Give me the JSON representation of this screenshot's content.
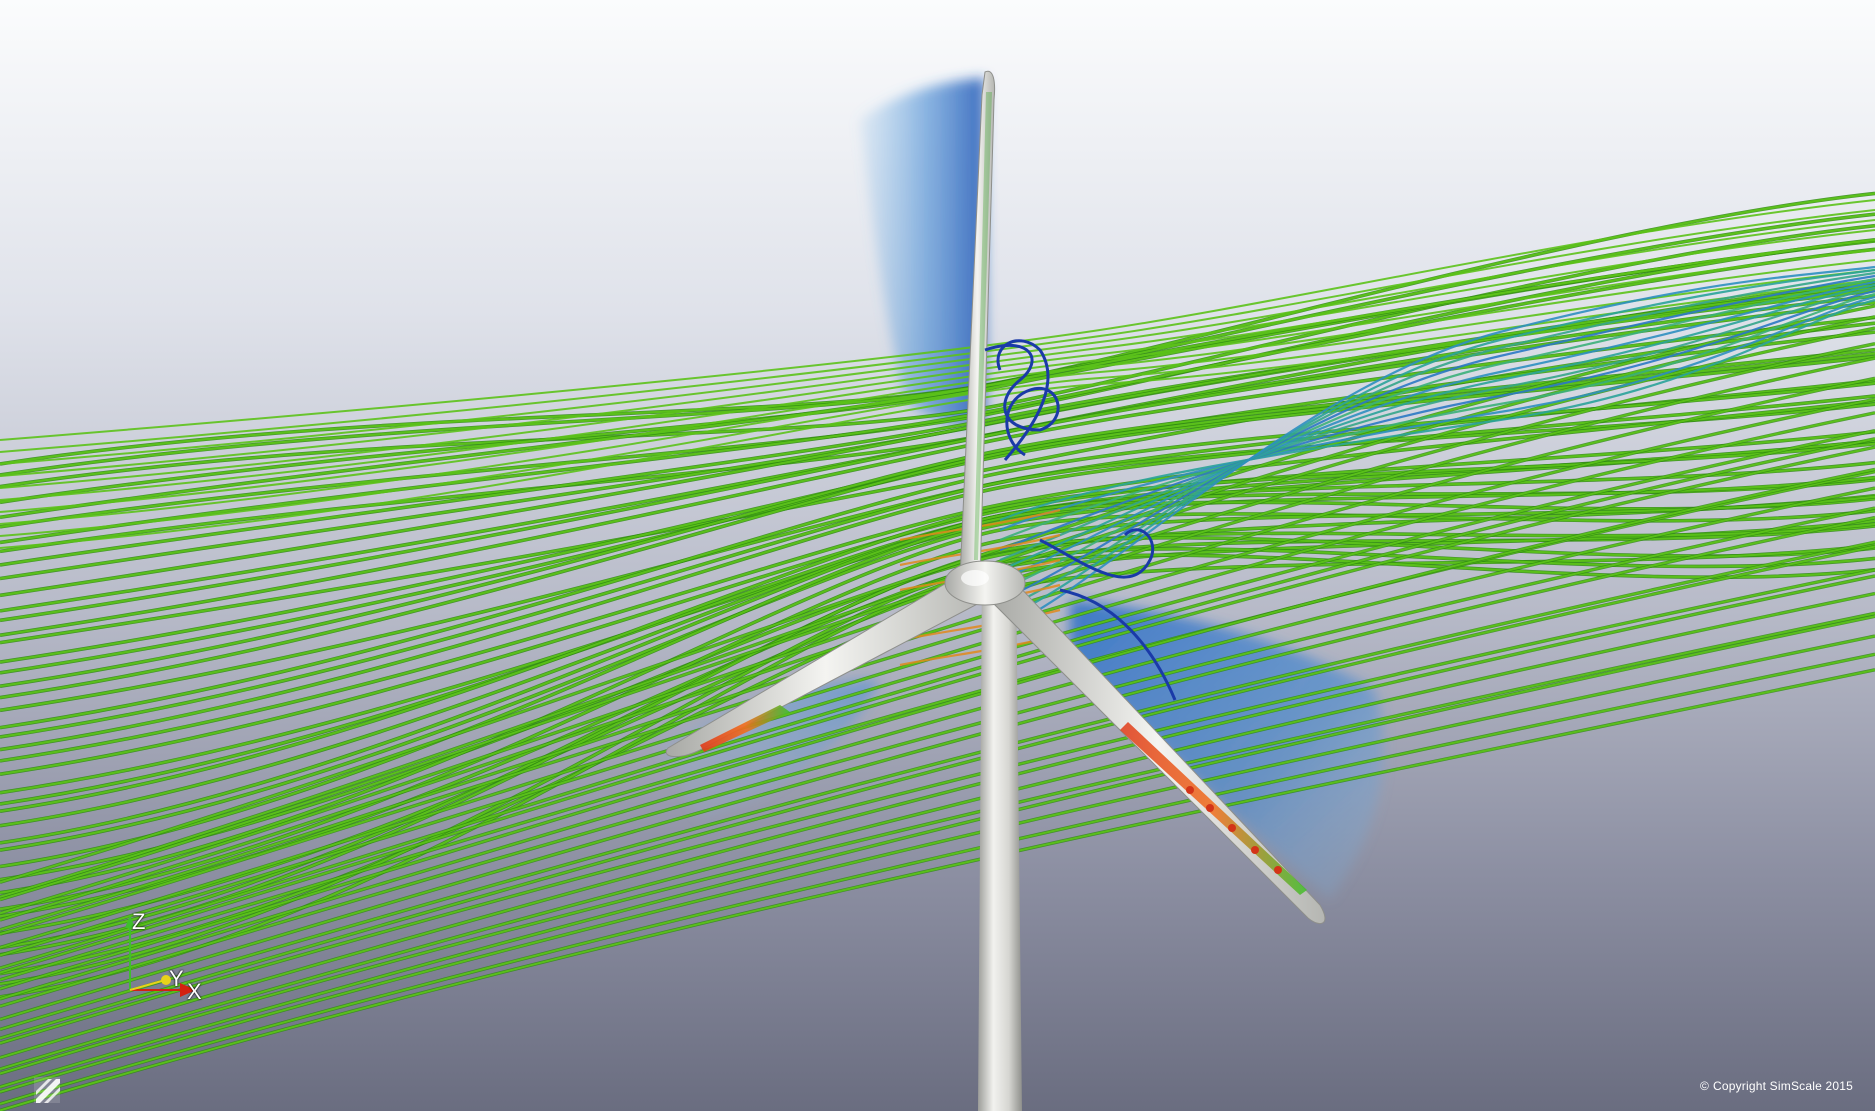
{
  "scene": {
    "subject": "wind-turbine-flow-simulation",
    "colors": {
      "streamline_green": "#5cc21a",
      "streamline_dark": "#2e8a10",
      "vortex_blue": "#1f3fb0",
      "wake_blue": "#2f7fd0",
      "pressure_red": "#d43018",
      "tower_gray": "#d9d9d6",
      "tower_shadow": "#a9aaa6"
    }
  },
  "axes": {
    "z_label": "Z",
    "y_label": "Y",
    "x_label": "X"
  },
  "footer": {
    "copyright_symbol": "©",
    "copyright_text": "Copyright SimScale 2015"
  },
  "logo": {
    "icon": "simscale-logo-icon"
  }
}
